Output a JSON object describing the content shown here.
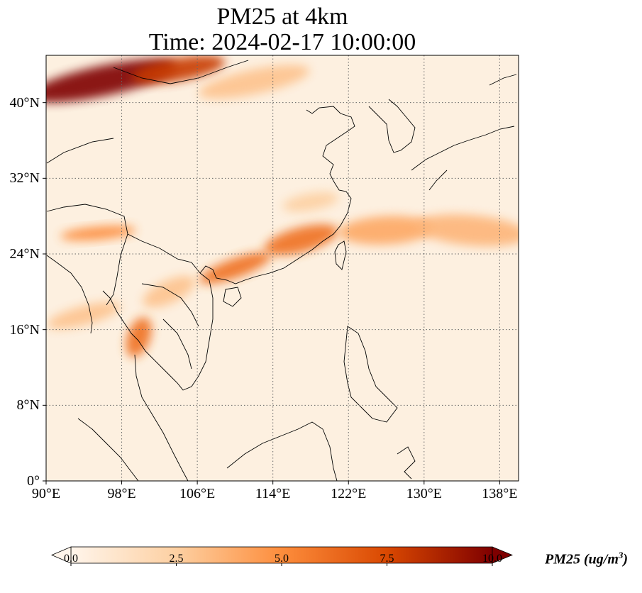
{
  "title_line1": "PM25 at 4km",
  "title_line2": "Time: 2024-02-17 10:00:00",
  "map": {
    "lon_range": [
      90,
      140
    ],
    "lat_range": [
      0,
      45
    ],
    "lon_ticks": [
      {
        "value": 90,
        "label": "90°E"
      },
      {
        "value": 98,
        "label": "98°E"
      },
      {
        "value": 106,
        "label": "106°E"
      },
      {
        "value": 114,
        "label": "114°E"
      },
      {
        "value": 122,
        "label": "122°E"
      },
      {
        "value": 130,
        "label": "130°E"
      },
      {
        "value": 138,
        "label": "138°E"
      }
    ],
    "lat_ticks": [
      {
        "value": 0,
        "label": "0°"
      },
      {
        "value": 8,
        "label": "8°N"
      },
      {
        "value": 16,
        "label": "16°N"
      },
      {
        "value": 24,
        "label": "24°N"
      },
      {
        "value": 32,
        "label": "32°N"
      },
      {
        "value": 40,
        "label": "40°N"
      }
    ],
    "gridlines": "dotted",
    "colormap": [
      "#fff5eb",
      "#fdd0a2",
      "#fd8d3c",
      "#d94801",
      "#7f0000"
    ],
    "background_color": "#fdf0e0",
    "plumes": [
      {
        "lon": 96,
        "lat": 42.3,
        "rx_deg": 8,
        "ry_deg": 1.6,
        "angle": -12,
        "value": 10
      },
      {
        "lon": 104,
        "lat": 43.5,
        "rx_deg": 5,
        "ry_deg": 1.2,
        "angle": -10,
        "value": 8
      },
      {
        "lon": 112,
        "lat": 42.2,
        "rx_deg": 6,
        "ry_deg": 1.3,
        "angle": -12,
        "value": 3
      },
      {
        "lon": 117,
        "lat": 25.5,
        "rx_deg": 4,
        "ry_deg": 1.3,
        "angle": -15,
        "value": 6
      },
      {
        "lon": 110,
        "lat": 22.5,
        "rx_deg": 4,
        "ry_deg": 1.0,
        "angle": -20,
        "value": 6
      },
      {
        "lon": 126,
        "lat": 26.5,
        "rx_deg": 5,
        "ry_deg": 1.5,
        "angle": -3,
        "value": 4
      },
      {
        "lon": 135,
        "lat": 26.5,
        "rx_deg": 6,
        "ry_deg": 1.6,
        "angle": 5,
        "value": 3.5
      },
      {
        "lon": 95.5,
        "lat": 26.2,
        "rx_deg": 4,
        "ry_deg": 0.7,
        "angle": -5,
        "value": 5
      },
      {
        "lon": 99.8,
        "lat": 15.2,
        "rx_deg": 1.2,
        "ry_deg": 2.2,
        "angle": 20,
        "value": 6
      },
      {
        "lon": 94,
        "lat": 17.5,
        "rx_deg": 4,
        "ry_deg": 1.0,
        "angle": -15,
        "value": 3
      },
      {
        "lon": 118,
        "lat": 29.5,
        "rx_deg": 3,
        "ry_deg": 0.9,
        "angle": -10,
        "value": 2.5
      },
      {
        "lon": 103,
        "lat": 20,
        "rx_deg": 3,
        "ry_deg": 1.2,
        "angle": -25,
        "value": 3
      }
    ]
  },
  "colorbar": {
    "min": 0,
    "max": 10,
    "ticks": [
      {
        "value": 0,
        "label": "0.0"
      },
      {
        "value": 2.5,
        "label": "2.5"
      },
      {
        "value": 5,
        "label": "5.0"
      },
      {
        "value": 7.5,
        "label": "7.5"
      },
      {
        "value": 10,
        "label": "10.0"
      }
    ],
    "label": "PM25 (ug/m",
    "label_superscript": "3",
    "label_close": ")",
    "extend": "both"
  }
}
